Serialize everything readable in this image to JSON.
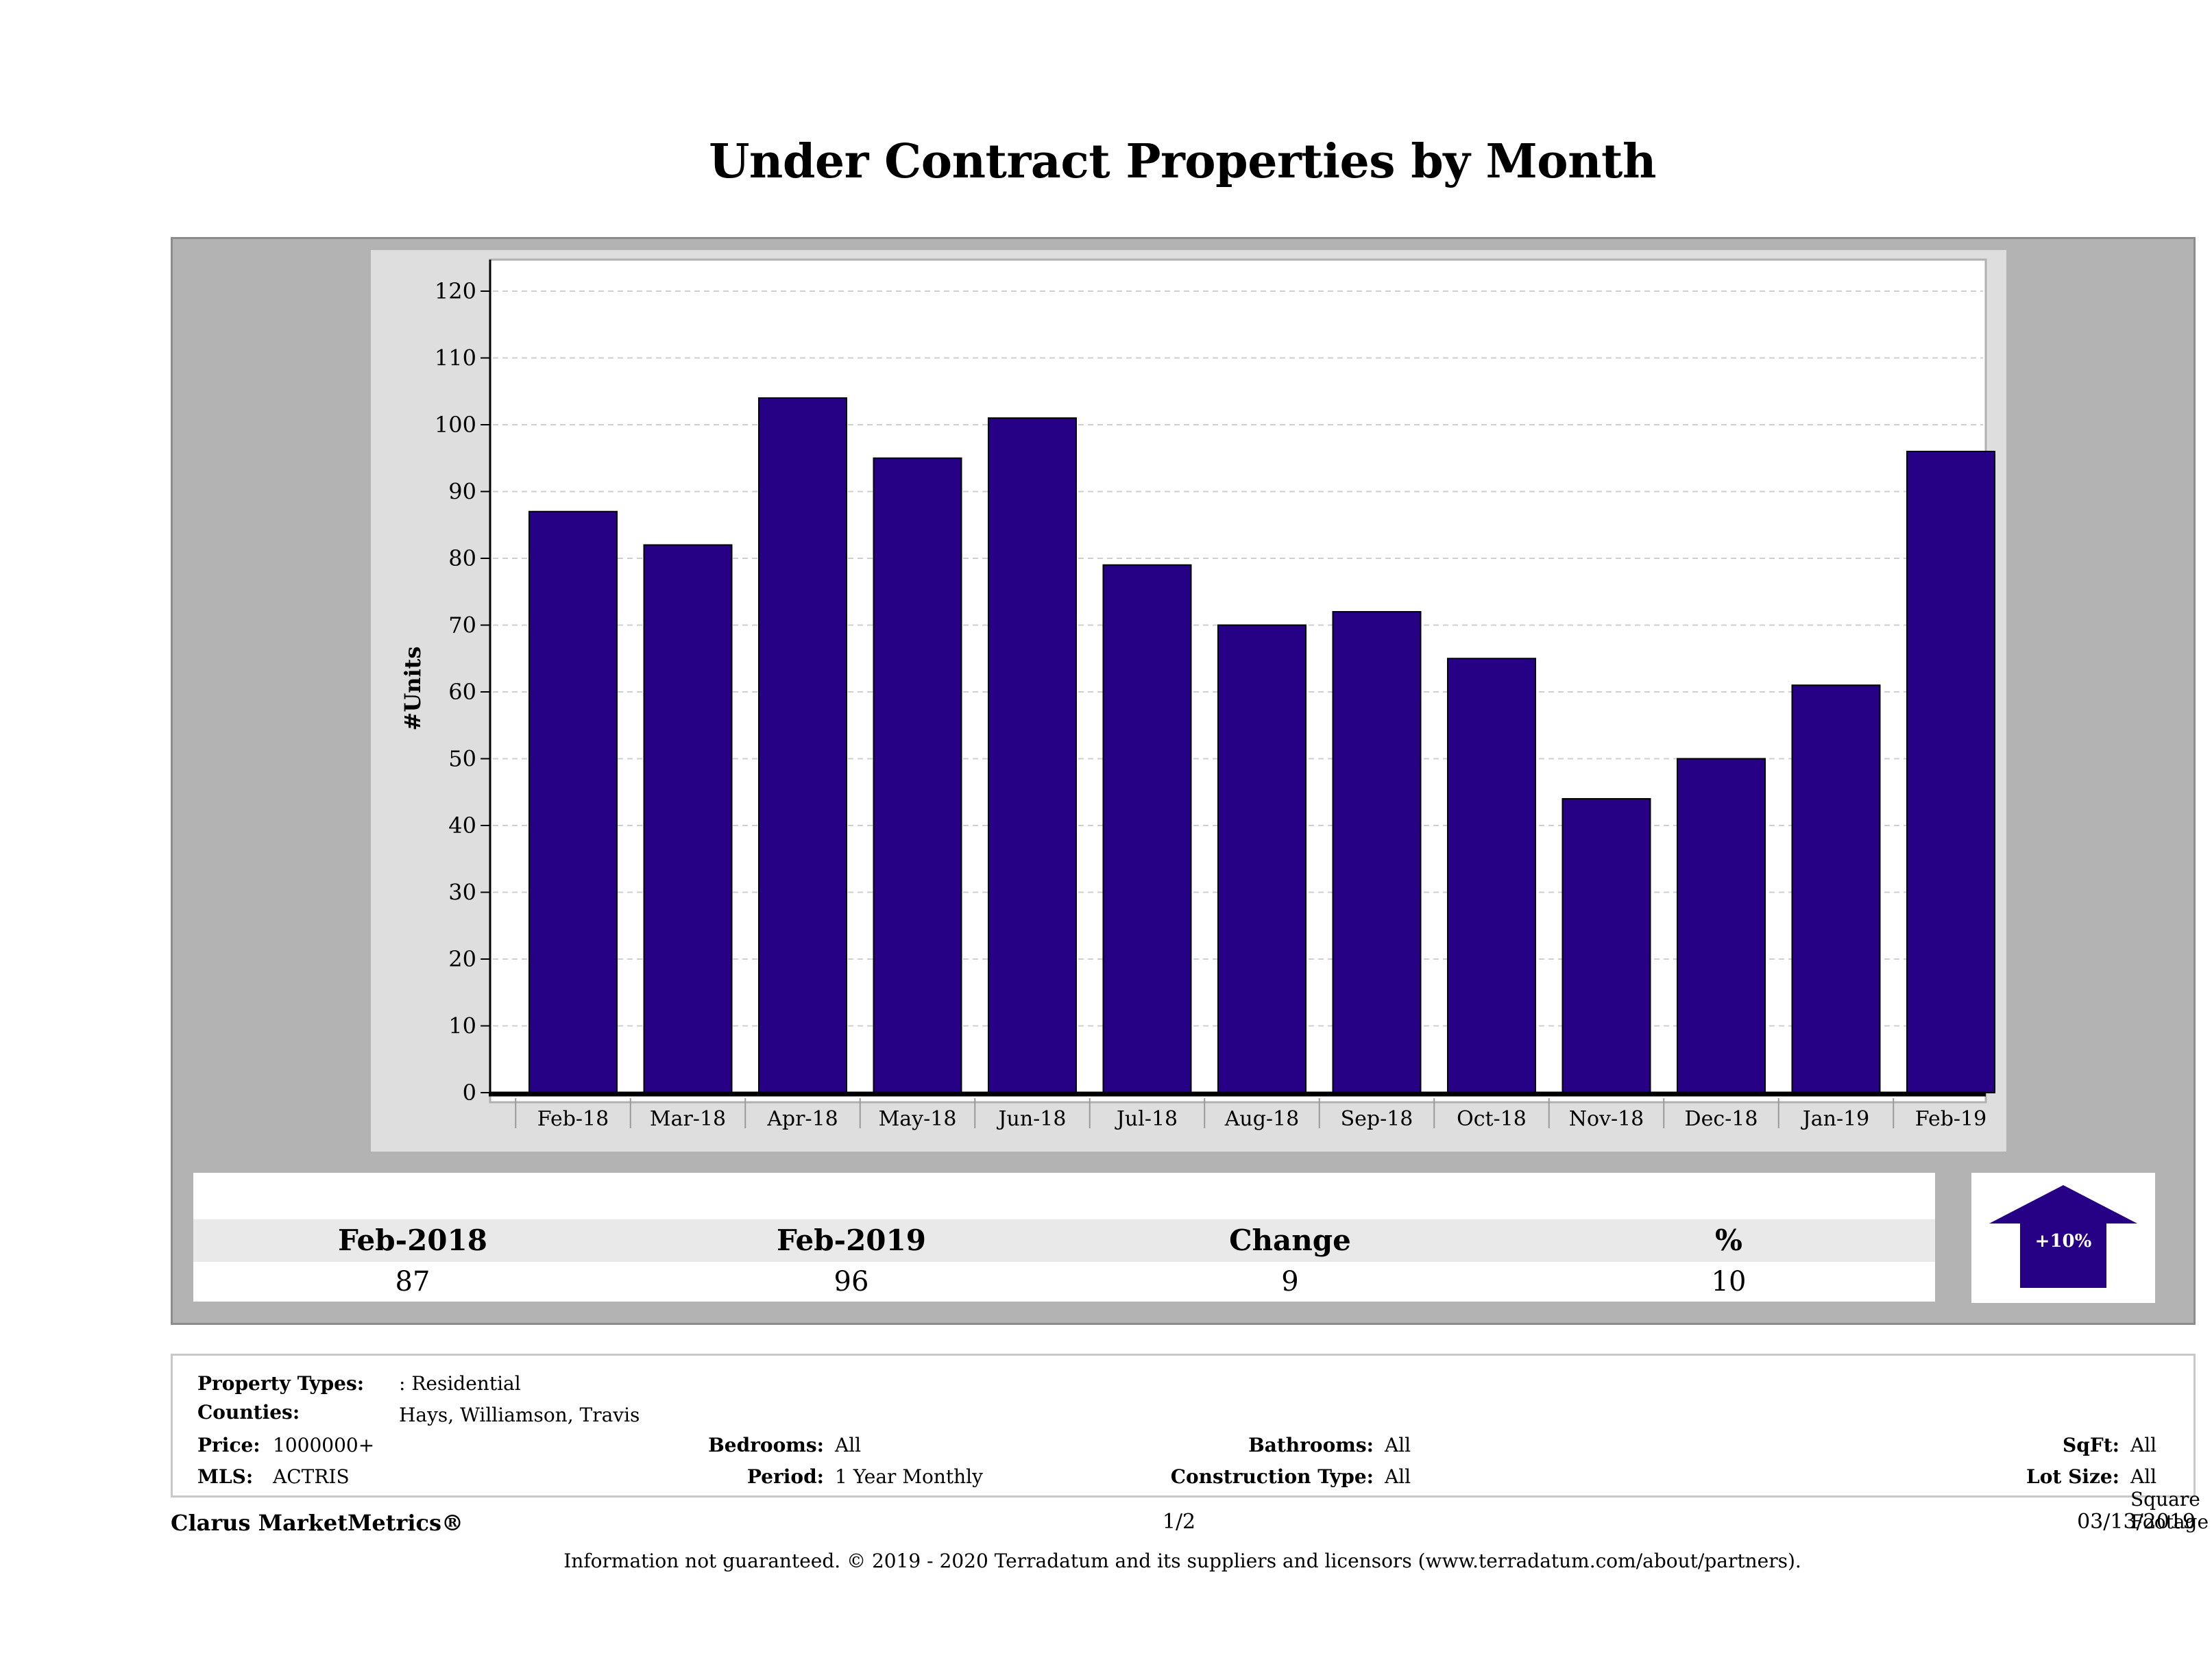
{
  "title": "Under Contract Properties by Month",
  "chart_data": {
    "type": "bar",
    "title": "Under Contract Properties by Month",
    "xlabel": "",
    "ylabel": "#Units",
    "categories": [
      "Feb-18",
      "Mar-18",
      "Apr-18",
      "May-18",
      "Jun-18",
      "Jul-18",
      "Aug-18",
      "Sep-18",
      "Oct-18",
      "Nov-18",
      "Dec-18",
      "Jan-19",
      "Feb-19"
    ],
    "values": [
      87,
      82,
      104,
      95,
      101,
      79,
      70,
      72,
      65,
      44,
      50,
      61,
      96
    ],
    "ylim": [
      0,
      120
    ],
    "yticks": [
      0,
      10,
      20,
      30,
      40,
      50,
      60,
      70,
      80,
      90,
      100,
      110,
      120
    ],
    "grid": true,
    "bar_color": "#260085"
  },
  "summary": {
    "headers": [
      "Feb-2018",
      "Feb-2019",
      "Change",
      "%"
    ],
    "values": [
      "87",
      "96",
      "9",
      "10"
    ],
    "badge": "+10%",
    "badge_color": "#260085"
  },
  "info": {
    "property_types_label": "Property Types:",
    "property_types_value": ": Residential",
    "counties_label": "Counties:",
    "counties_value": "Hays, Williamson, Travis",
    "price_label": "Price:",
    "price_value": "1000000+",
    "mls_label": "MLS:",
    "mls_value": "ACTRIS",
    "bedrooms_label": "Bedrooms:",
    "bedrooms_value": "All",
    "period_label": "Period:",
    "period_value": "1 Year Monthly",
    "bathrooms_label": "Bathrooms:",
    "bathrooms_value": "All",
    "construction_label": "Construction Type:",
    "construction_value": "All",
    "sqft_label": "SqFt:",
    "sqft_value": "All",
    "lotsize_label": "Lot Size:",
    "lotsize_value": "All Square Footage"
  },
  "footer": {
    "brand": "Clarus MarketMetrics®",
    "page": "1/2",
    "date": "03/13/2019",
    "note": "Information not guaranteed. © 2019 - 2020 Terradatum and its suppliers and licensors (www.terradatum.com/about/partners)."
  }
}
